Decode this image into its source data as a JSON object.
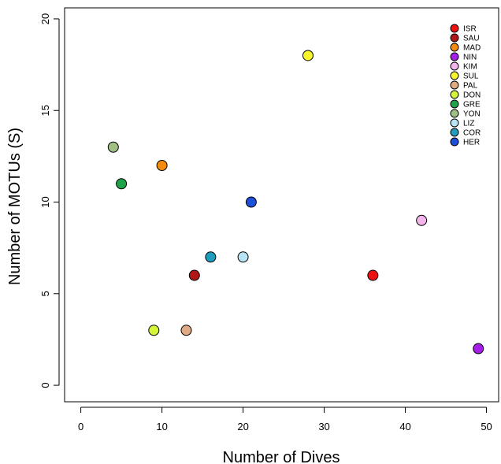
{
  "chart_data": {
    "type": "scatter",
    "title": "",
    "xlabel": "Number of Dives",
    "ylabel": "Number of MOTUs (S)",
    "xlim": [
      -2,
      51.5
    ],
    "ylim": [
      -0.9,
      20.6
    ],
    "xticks": [
      0,
      10,
      20,
      30,
      40,
      50
    ],
    "yticks": [
      0,
      5,
      10,
      15,
      20
    ],
    "grid": false,
    "legend_position": "top-right",
    "points": [
      {
        "label": "ISR",
        "x": 36,
        "y": 6,
        "color": "#ee1111"
      },
      {
        "label": "SAU",
        "x": 14,
        "y": 6,
        "color": "#b01717"
      },
      {
        "label": "MAD",
        "x": 10,
        "y": 12,
        "color": "#f28c0f"
      },
      {
        "label": "NIN",
        "x": 49,
        "y": 2,
        "color": "#a51ee8"
      },
      {
        "label": "KIM",
        "x": 42,
        "y": 9,
        "color": "#f3b6ec"
      },
      {
        "label": "SUL",
        "x": 28,
        "y": 18,
        "color": "#f9f72b"
      },
      {
        "label": "PAL",
        "x": 13,
        "y": 3,
        "color": "#e0ab82"
      },
      {
        "label": "DON",
        "x": 9,
        "y": 3,
        "color": "#d4f53a"
      },
      {
        "label": "GRE",
        "x": 5,
        "y": 11,
        "color": "#1ea34b"
      },
      {
        "label": "YON",
        "x": 4,
        "y": 13,
        "color": "#9fbf84"
      },
      {
        "label": "LIZ",
        "x": 20,
        "y": 7,
        "color": "#b9e4f5"
      },
      {
        "label": "COR",
        "x": 16,
        "y": 7,
        "color": "#1e9dbd"
      },
      {
        "label": "HER",
        "x": 21,
        "y": 10,
        "color": "#1e4fd9"
      }
    ]
  }
}
